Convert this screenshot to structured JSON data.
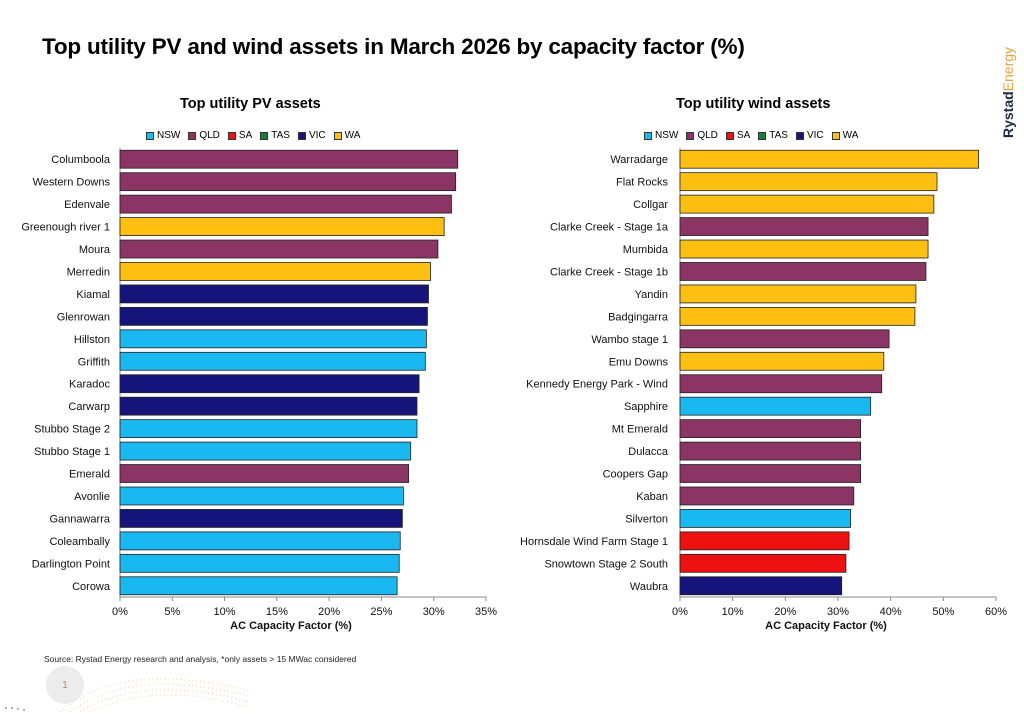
{
  "title": "Top utility PV and wind assets in March 2026 by capacity factor (%)",
  "brand": {
    "part1": "Rystad",
    "part2": "Energy"
  },
  "source": "Source: Rystad Energy research and analysis, *only assets > 15 MWac considered",
  "page_number": "1",
  "colors": {
    "NSW": "#1ab8f0",
    "QLD": "#8b3564",
    "SA": "#ee1111",
    "TAS": "#1f7a3a",
    "VIC": "#14147a",
    "WA": "#fcbf12"
  },
  "chart_data": [
    {
      "type": "bar",
      "orientation": "horizontal",
      "title": "Top utility PV assets",
      "xlabel": "AC Capacity Factor (%)",
      "ylabel": "",
      "xlim": [
        0,
        35
      ],
      "xticks": [
        0,
        5,
        10,
        15,
        20,
        25,
        30,
        35
      ],
      "xtick_labels": [
        "0%",
        "5%",
        "10%",
        "15%",
        "20%",
        "25%",
        "30%",
        "35%"
      ],
      "grid": false,
      "legend": {
        "placement": "top",
        "entries": [
          "NSW",
          "QLD",
          "SA",
          "TAS",
          "VIC",
          "WA"
        ]
      },
      "categories": [
        "Columboola",
        "Western Downs",
        "Edenvale",
        "Greenough river 1",
        "Moura",
        "Merredin",
        "Kiamal",
        "Glenrowan",
        "Hillston",
        "Griffith",
        "Karadoc",
        "Carwarp",
        "Stubbo Stage 2",
        "Stubbo Stage 1",
        "Emerald",
        "Avonlie",
        "Gannawarra",
        "Coleambally",
        "Darlington Point",
        "Corowa"
      ],
      "values": [
        32.3,
        32.1,
        31.7,
        31.0,
        30.4,
        29.7,
        29.5,
        29.4,
        29.3,
        29.2,
        28.6,
        28.4,
        28.4,
        27.8,
        27.6,
        27.1,
        27.0,
        26.8,
        26.7,
        26.5
      ],
      "states": [
        "QLD",
        "QLD",
        "QLD",
        "WA",
        "QLD",
        "WA",
        "VIC",
        "VIC",
        "NSW",
        "NSW",
        "VIC",
        "VIC",
        "NSW",
        "NSW",
        "QLD",
        "NSW",
        "VIC",
        "NSW",
        "NSW",
        "NSW"
      ]
    },
    {
      "type": "bar",
      "orientation": "horizontal",
      "title": "Top utility wind assets",
      "xlabel": "AC Capacity Factor (%)",
      "ylabel": "",
      "xlim": [
        0,
        60
      ],
      "xticks": [
        0,
        10,
        20,
        30,
        40,
        50,
        60
      ],
      "xtick_labels": [
        "0%",
        "10%",
        "20%",
        "30%",
        "40%",
        "50%",
        "60%"
      ],
      "grid": false,
      "legend": {
        "placement": "top",
        "entries": [
          "NSW",
          "QLD",
          "SA",
          "TAS",
          "VIC",
          "WA"
        ]
      },
      "categories": [
        "Warradarge",
        "Flat Rocks",
        "Collgar",
        "Clarke Creek - Stage 1a",
        "Mumbida",
        "Clarke Creek - Stage 1b",
        "Yandin",
        "Badgingarra",
        "Wambo stage 1",
        "Emu Downs",
        "Kennedy Energy Park - Wind",
        "Sapphire",
        "Mt Emerald",
        "Dulacca",
        "Coopers Gap",
        "Kaban",
        "Silverton",
        "Hornsdale Wind Farm Stage 1",
        "Snowtown Stage 2 South",
        "Waubra"
      ],
      "values": [
        56.7,
        48.8,
        48.2,
        47.1,
        47.1,
        46.7,
        44.8,
        44.6,
        39.7,
        38.7,
        38.3,
        36.2,
        34.3,
        34.3,
        34.3,
        33.0,
        32.4,
        32.1,
        31.5,
        30.7
      ],
      "states": [
        "WA",
        "WA",
        "WA",
        "QLD",
        "WA",
        "QLD",
        "WA",
        "WA",
        "QLD",
        "WA",
        "QLD",
        "NSW",
        "QLD",
        "QLD",
        "QLD",
        "QLD",
        "NSW",
        "SA",
        "SA",
        "VIC"
      ]
    }
  ]
}
